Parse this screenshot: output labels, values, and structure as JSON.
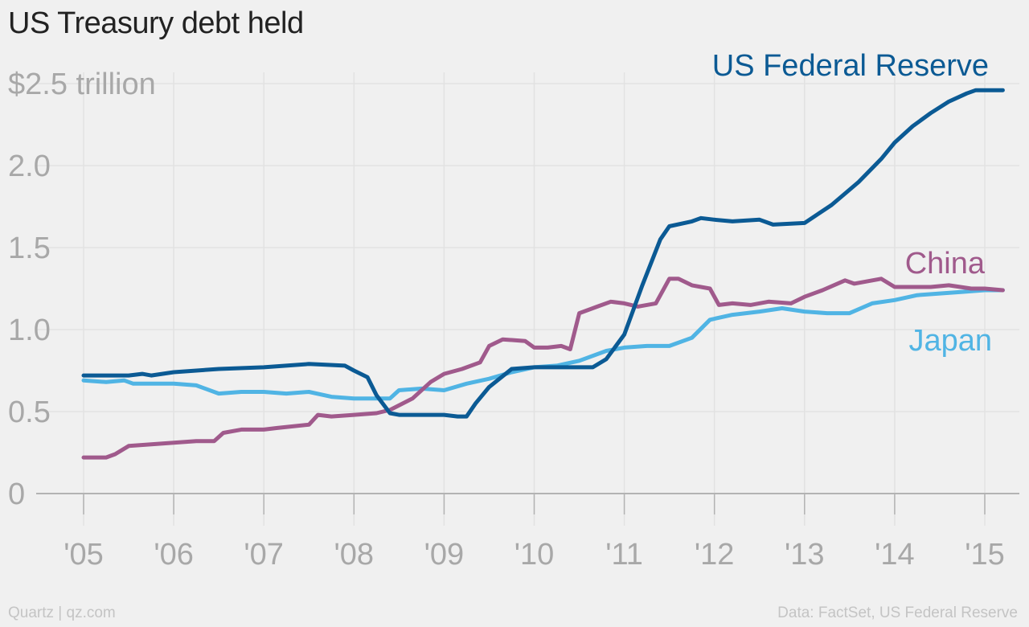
{
  "title": "US Treasury debt held",
  "footer": {
    "credit": "Quartz | qz.com",
    "source": "Data: FactSet, US Federal Reserve"
  },
  "colors": {
    "background": "#f0f0f0",
    "grid": "#e2e2e2",
    "baseline": "#b3b3b3",
    "tick_text": "#a8a8a8",
    "fed": "#0b5a94",
    "china": "#a05a8c",
    "japan": "#50b4e4"
  },
  "chart_data": {
    "type": "line",
    "title": "US Treasury debt held",
    "xlabel": "",
    "ylabel": "",
    "xlim": [
      2005,
      2015.1
    ],
    "ylim": [
      0,
      2.5
    ],
    "x_ticks": [
      2005,
      2006,
      2007,
      2008,
      2009,
      2010,
      2011,
      2012,
      2013,
      2014,
      2015
    ],
    "x_tick_labels": [
      "'05",
      "'06",
      "'07",
      "'08",
      "'09",
      "'10",
      "'11",
      "'12",
      "'13",
      "'14",
      "'15"
    ],
    "y_ticks": [
      0,
      0.5,
      1.0,
      1.5,
      2.0,
      2.5
    ],
    "y_tick_labels": [
      "0",
      "0.5",
      "1.0",
      "1.5",
      "2.0",
      "$2.5 trillion"
    ],
    "grid": true,
    "legend": "direct labels at right end of lines",
    "series": [
      {
        "name": "US Federal Reserve",
        "color": "#0b5a94",
        "points": [
          [
            2005.0,
            0.72
          ],
          [
            2005.5,
            0.72
          ],
          [
            2005.65,
            0.73
          ],
          [
            2005.75,
            0.72
          ],
          [
            2006.0,
            0.74
          ],
          [
            2006.5,
            0.76
          ],
          [
            2007.0,
            0.77
          ],
          [
            2007.5,
            0.79
          ],
          [
            2007.9,
            0.78
          ],
          [
            2008.0,
            0.75
          ],
          [
            2008.15,
            0.71
          ],
          [
            2008.25,
            0.6
          ],
          [
            2008.4,
            0.49
          ],
          [
            2008.5,
            0.48
          ],
          [
            2008.9,
            0.48
          ],
          [
            2009.0,
            0.48
          ],
          [
            2009.15,
            0.47
          ],
          [
            2009.25,
            0.47
          ],
          [
            2009.35,
            0.55
          ],
          [
            2009.5,
            0.65
          ],
          [
            2009.75,
            0.76
          ],
          [
            2010.0,
            0.77
          ],
          [
            2010.5,
            0.77
          ],
          [
            2010.65,
            0.77
          ],
          [
            2010.8,
            0.82
          ],
          [
            2011.0,
            0.97
          ],
          [
            2011.2,
            1.27
          ],
          [
            2011.4,
            1.55
          ],
          [
            2011.5,
            1.63
          ],
          [
            2011.75,
            1.66
          ],
          [
            2011.85,
            1.68
          ],
          [
            2012.0,
            1.67
          ],
          [
            2012.2,
            1.66
          ],
          [
            2012.5,
            1.67
          ],
          [
            2012.65,
            1.64
          ],
          [
            2013.0,
            1.65
          ],
          [
            2013.3,
            1.76
          ],
          [
            2013.6,
            1.9
          ],
          [
            2013.85,
            2.04
          ],
          [
            2014.0,
            2.14
          ],
          [
            2014.2,
            2.24
          ],
          [
            2014.4,
            2.32
          ],
          [
            2014.6,
            2.39
          ],
          [
            2014.8,
            2.44
          ],
          [
            2014.9,
            2.46
          ],
          [
            2015.2,
            2.46
          ]
        ]
      },
      {
        "name": "China",
        "color": "#a05a8c",
        "points": [
          [
            2005.0,
            0.22
          ],
          [
            2005.25,
            0.22
          ],
          [
            2005.35,
            0.24
          ],
          [
            2005.5,
            0.29
          ],
          [
            2005.75,
            0.3
          ],
          [
            2006.0,
            0.31
          ],
          [
            2006.25,
            0.32
          ],
          [
            2006.45,
            0.32
          ],
          [
            2006.55,
            0.37
          ],
          [
            2006.75,
            0.39
          ],
          [
            2007.0,
            0.39
          ],
          [
            2007.15,
            0.4
          ],
          [
            2007.5,
            0.42
          ],
          [
            2007.6,
            0.48
          ],
          [
            2007.75,
            0.47
          ],
          [
            2008.0,
            0.48
          ],
          [
            2008.25,
            0.49
          ],
          [
            2008.4,
            0.51
          ],
          [
            2008.65,
            0.58
          ],
          [
            2008.85,
            0.68
          ],
          [
            2009.0,
            0.73
          ],
          [
            2009.2,
            0.76
          ],
          [
            2009.4,
            0.8
          ],
          [
            2009.5,
            0.9
          ],
          [
            2009.65,
            0.94
          ],
          [
            2009.9,
            0.93
          ],
          [
            2010.0,
            0.89
          ],
          [
            2010.15,
            0.89
          ],
          [
            2010.3,
            0.9
          ],
          [
            2010.4,
            0.88
          ],
          [
            2010.5,
            1.1
          ],
          [
            2010.7,
            1.14
          ],
          [
            2010.85,
            1.17
          ],
          [
            2011.0,
            1.16
          ],
          [
            2011.15,
            1.14
          ],
          [
            2011.35,
            1.16
          ],
          [
            2011.5,
            1.31
          ],
          [
            2011.6,
            1.31
          ],
          [
            2011.75,
            1.27
          ],
          [
            2011.95,
            1.25
          ],
          [
            2012.05,
            1.15
          ],
          [
            2012.2,
            1.16
          ],
          [
            2012.4,
            1.15
          ],
          [
            2012.6,
            1.17
          ],
          [
            2012.85,
            1.16
          ],
          [
            2013.0,
            1.2
          ],
          [
            2013.2,
            1.24
          ],
          [
            2013.45,
            1.3
          ],
          [
            2013.55,
            1.28
          ],
          [
            2013.85,
            1.31
          ],
          [
            2014.0,
            1.26
          ],
          [
            2014.4,
            1.26
          ],
          [
            2014.6,
            1.27
          ],
          [
            2014.85,
            1.25
          ],
          [
            2015.0,
            1.25
          ],
          [
            2015.2,
            1.24
          ]
        ]
      },
      {
        "name": "Japan",
        "color": "#50b4e4",
        "points": [
          [
            2005.0,
            0.69
          ],
          [
            2005.25,
            0.68
          ],
          [
            2005.45,
            0.69
          ],
          [
            2005.55,
            0.67
          ],
          [
            2006.0,
            0.67
          ],
          [
            2006.25,
            0.66
          ],
          [
            2006.5,
            0.61
          ],
          [
            2006.75,
            0.62
          ],
          [
            2007.0,
            0.62
          ],
          [
            2007.25,
            0.61
          ],
          [
            2007.5,
            0.62
          ],
          [
            2007.75,
            0.59
          ],
          [
            2008.0,
            0.58
          ],
          [
            2008.2,
            0.58
          ],
          [
            2008.4,
            0.58
          ],
          [
            2008.5,
            0.63
          ],
          [
            2008.75,
            0.64
          ],
          [
            2009.0,
            0.63
          ],
          [
            2009.25,
            0.67
          ],
          [
            2009.5,
            0.7
          ],
          [
            2009.75,
            0.74
          ],
          [
            2010.0,
            0.77
          ],
          [
            2010.25,
            0.78
          ],
          [
            2010.5,
            0.81
          ],
          [
            2010.8,
            0.87
          ],
          [
            2011.0,
            0.89
          ],
          [
            2011.25,
            0.9
          ],
          [
            2011.5,
            0.9
          ],
          [
            2011.75,
            0.95
          ],
          [
            2011.95,
            1.06
          ],
          [
            2012.2,
            1.09
          ],
          [
            2012.5,
            1.11
          ],
          [
            2012.75,
            1.13
          ],
          [
            2013.0,
            1.11
          ],
          [
            2013.25,
            1.1
          ],
          [
            2013.5,
            1.1
          ],
          [
            2013.75,
            1.16
          ],
          [
            2014.0,
            1.18
          ],
          [
            2014.25,
            1.21
          ],
          [
            2014.5,
            1.22
          ],
          [
            2014.75,
            1.23
          ],
          [
            2015.0,
            1.24
          ],
          [
            2015.2,
            1.24
          ]
        ]
      }
    ],
    "series_labels": [
      "US Federal Reserve",
      "China",
      "Japan"
    ]
  }
}
